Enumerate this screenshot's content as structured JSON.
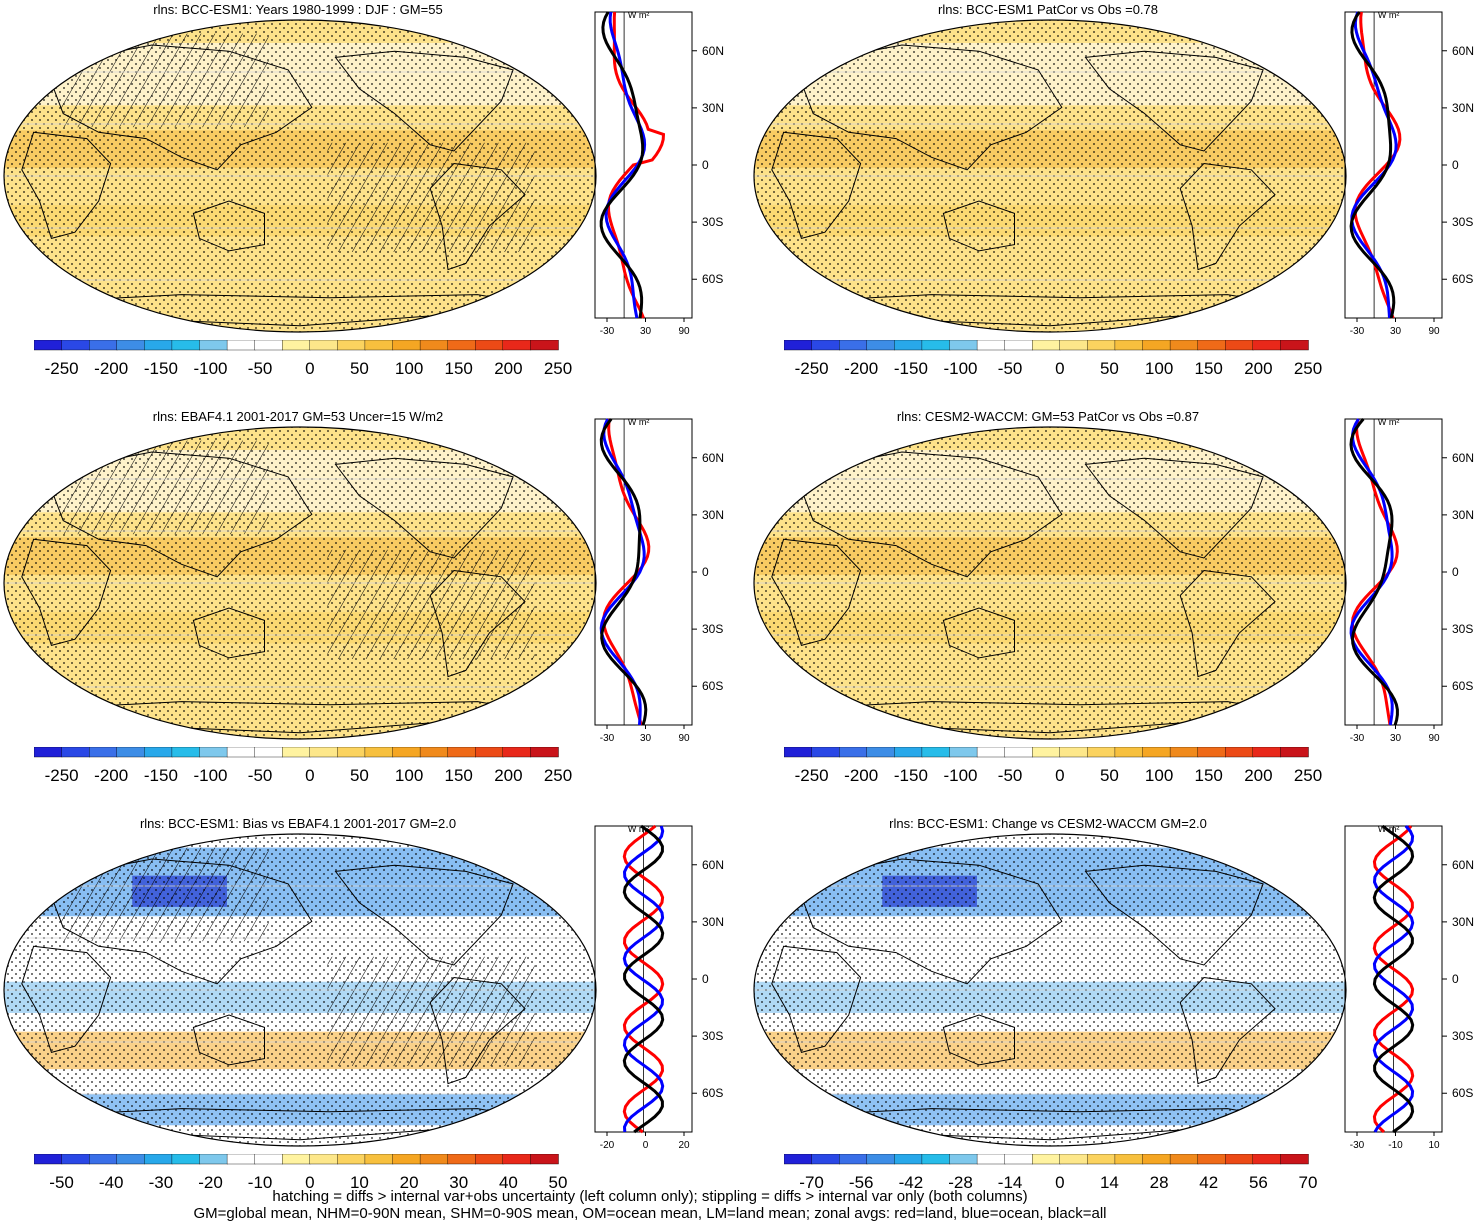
{
  "footer": {
    "line1": "hatching = diffs > internal var+obs uncertainty (left column only); stippling = diffs > internal var only (both columns)",
    "line2": "GM=global mean, NHM=0-90N mean, SHM=0-90S mean, OM=ocean mean, LM=land mean; zonal avgs: red=land, blue=ocean, black=all"
  },
  "colors": {
    "land_line": "#ff0000",
    "ocean_line": "#0000ff",
    "all_line": "#000000",
    "map_mean": "#fde28a",
    "map_neg": "#6aaef0",
    "map_pos": "#f7b23b"
  },
  "panels": [
    {
      "id": "p1",
      "kind": "mean",
      "title": "rlns: BCC-ESM1: Years 1980-1999 : DJF : GM=55",
      "units": "W m²",
      "zonal_ticks": [
        "-30",
        "30",
        "90"
      ],
      "lat_labels": [
        "60N",
        "30N",
        "0",
        "30S",
        "60S"
      ],
      "colorbar_labels": [
        "-250",
        "-200",
        "-150",
        "-100",
        "-50",
        "0",
        "50",
        "100",
        "150",
        "200",
        "250"
      ]
    },
    {
      "id": "p2",
      "kind": "mean",
      "title": "rlns: BCC-ESM1 PatCor vs Obs =0.78",
      "units": "W m²",
      "zonal_ticks": [
        "-30",
        "30",
        "90"
      ],
      "lat_labels": [
        "60N",
        "30N",
        "0",
        "30S",
        "60S"
      ],
      "colorbar_labels": [
        "-250",
        "-200",
        "-150",
        "-100",
        "-50",
        "0",
        "50",
        "100",
        "150",
        "200",
        "250"
      ]
    },
    {
      "id": "p3",
      "kind": "mean",
      "title": "rlns: EBAF4.1 2001-2017 GM=53 Uncer=15 W/m2",
      "units": "W m²",
      "zonal_ticks": [
        "-30",
        "30",
        "90"
      ],
      "lat_labels": [
        "60N",
        "30N",
        "0",
        "30S",
        "60S"
      ],
      "colorbar_labels": [
        "-250",
        "-200",
        "-150",
        "-100",
        "-50",
        "0",
        "50",
        "100",
        "150",
        "200",
        "250"
      ]
    },
    {
      "id": "p4",
      "kind": "mean",
      "title": "rlns: CESM2-WACCM: GM=53 PatCor vs Obs =0.87",
      "units": "W m²",
      "zonal_ticks": [
        "-30",
        "30",
        "90"
      ],
      "lat_labels": [
        "60N",
        "30N",
        "0",
        "30S",
        "60S"
      ],
      "colorbar_labels": [
        "-250",
        "-200",
        "-150",
        "-100",
        "-50",
        "0",
        "50",
        "100",
        "150",
        "200",
        "250"
      ]
    },
    {
      "id": "p5",
      "kind": "bias",
      "title": "rlns: BCC-ESM1: Bias vs EBAF4.1 2001-2017 GM=2.0",
      "units": "W m²",
      "zonal_ticks": [
        "-20",
        "0",
        "20"
      ],
      "lat_labels": [
        "60N",
        "30N",
        "0",
        "30S",
        "60S"
      ],
      "colorbar_labels": [
        "-50",
        "-40",
        "-30",
        "-20",
        "-10",
        "0",
        "10",
        "20",
        "30",
        "40",
        "50"
      ]
    },
    {
      "id": "p6",
      "kind": "bias",
      "title": "rlns: BCC-ESM1: Change vs CESM2-WACCM GM=2.0",
      "units": "W m²",
      "zonal_ticks": [
        "-30",
        "-10",
        "10"
      ],
      "lat_labels": [
        "60N",
        "30N",
        "0",
        "30S",
        "60S"
      ],
      "colorbar_labels": [
        "-70",
        "-56",
        "-42",
        "-28",
        "-14",
        "0",
        "14",
        "28",
        "42",
        "56",
        "70"
      ]
    }
  ]
}
